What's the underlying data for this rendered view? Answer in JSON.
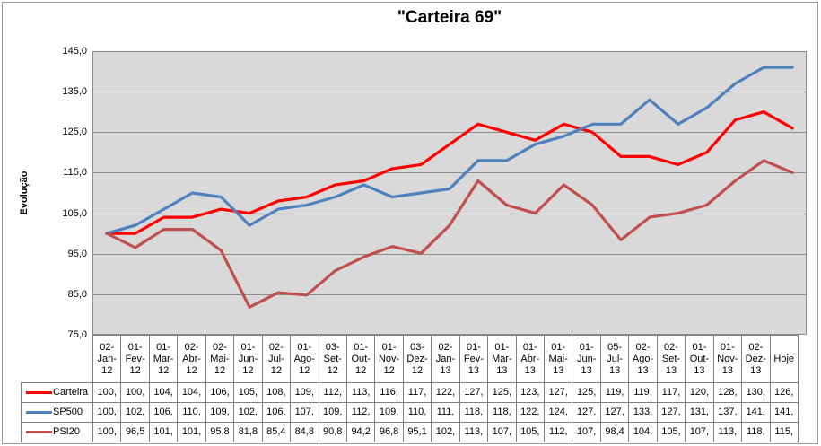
{
  "title": "\"Carteira 69\"",
  "y_axis": {
    "title": "Evolução",
    "ticks": [
      "145,0",
      "135,0",
      "125,0",
      "115,0",
      "105,0",
      "95,0",
      "85,0",
      "75,0"
    ]
  },
  "colors": {
    "carteira": "#ff0000",
    "sp500": "#4f81bd",
    "psi20": "#c0504d",
    "plot_bg": "#d9d9d9",
    "gridline": "#8c8c8c",
    "table_border": "#7f7f7f",
    "frame_border": "#9b9b9b"
  },
  "chart_data": {
    "type": "line",
    "title": "\"Carteira 69\"",
    "xlabel": "",
    "ylabel": "Evolução",
    "ylim": [
      75,
      145
    ],
    "ytick_step": 10,
    "grid": true,
    "legend_position": "left-of-data-table",
    "categories": [
      "02-Jan-12",
      "01-Fev-12",
      "01-Mar-12",
      "02-Abr-12",
      "02-Mai-12",
      "01-Jun-12",
      "02-Jul-12",
      "01-Ago-12",
      "03-Set-12",
      "01-Out-12",
      "01-Nov-12",
      "03-Dez-12",
      "02-Jan-13",
      "01-Fev-13",
      "01-Mar-13",
      "01-Abr-13",
      "01-Mai-13",
      "01-Jun-13",
      "05-Jul-13",
      "02-Ago-13",
      "02-Set-13",
      "01-Out-13",
      "01-Nov-13",
      "02-Dez-13",
      "Hoje"
    ],
    "series": [
      {
        "name": "Carteira",
        "color": "#ff0000",
        "values": [
          100,
          100,
          104,
          104,
          106,
          105,
          108,
          109,
          112,
          113,
          116,
          117,
          122,
          127,
          125,
          123,
          127,
          125,
          119,
          119,
          117,
          120,
          128,
          130,
          126
        ]
      },
      {
        "name": "SP500",
        "color": "#4f81bd",
        "values": [
          100,
          102,
          106,
          110,
          109,
          102,
          106,
          107,
          109,
          112,
          109,
          110,
          111,
          118,
          118,
          122,
          124,
          127,
          127,
          133,
          127,
          131,
          137,
          141,
          141
        ]
      },
      {
        "name": "PSI20",
        "color": "#c0504d",
        "values": [
          100,
          96.5,
          101,
          101,
          95.8,
          81.8,
          85.4,
          84.8,
          90.8,
          94.2,
          96.8,
          95.1,
          102,
          113,
          107,
          105,
          112,
          107,
          98.4,
          104,
          105,
          107,
          113,
          118,
          115
        ]
      }
    ]
  },
  "data_table": {
    "rows": [
      {
        "name": "Carteira",
        "color": "#ff0000",
        "cells": [
          "100,",
          "100,",
          "104,",
          "104,",
          "106,",
          "105,",
          "108,",
          "109,",
          "112,",
          "113,",
          "116,",
          "117,",
          "122,",
          "127,",
          "125,",
          "123,",
          "127,",
          "125,",
          "119,",
          "119,",
          "117,",
          "120,",
          "128,",
          "130,",
          "126,"
        ]
      },
      {
        "name": "SP500",
        "color": "#4f81bd",
        "cells": [
          "100,",
          "102,",
          "106,",
          "110,",
          "109,",
          "102,",
          "106,",
          "107,",
          "109,",
          "112,",
          "109,",
          "110,",
          "111,",
          "118,",
          "118,",
          "122,",
          "124,",
          "127,",
          "127,",
          "133,",
          "127,",
          "131,",
          "137,",
          "141,",
          "141,"
        ]
      },
      {
        "name": "PSI20",
        "color": "#c0504d",
        "cells": [
          "100,",
          "96,5",
          "101,",
          "101,",
          "95,8",
          "81,8",
          "85,4",
          "84,8",
          "90,8",
          "94,2",
          "96,8",
          "95,1",
          "102,",
          "113,",
          "107,",
          "105,",
          "112,",
          "107,",
          "98,4",
          "104,",
          "105,",
          "107,",
          "113,",
          "118,",
          "115,"
        ]
      }
    ]
  }
}
